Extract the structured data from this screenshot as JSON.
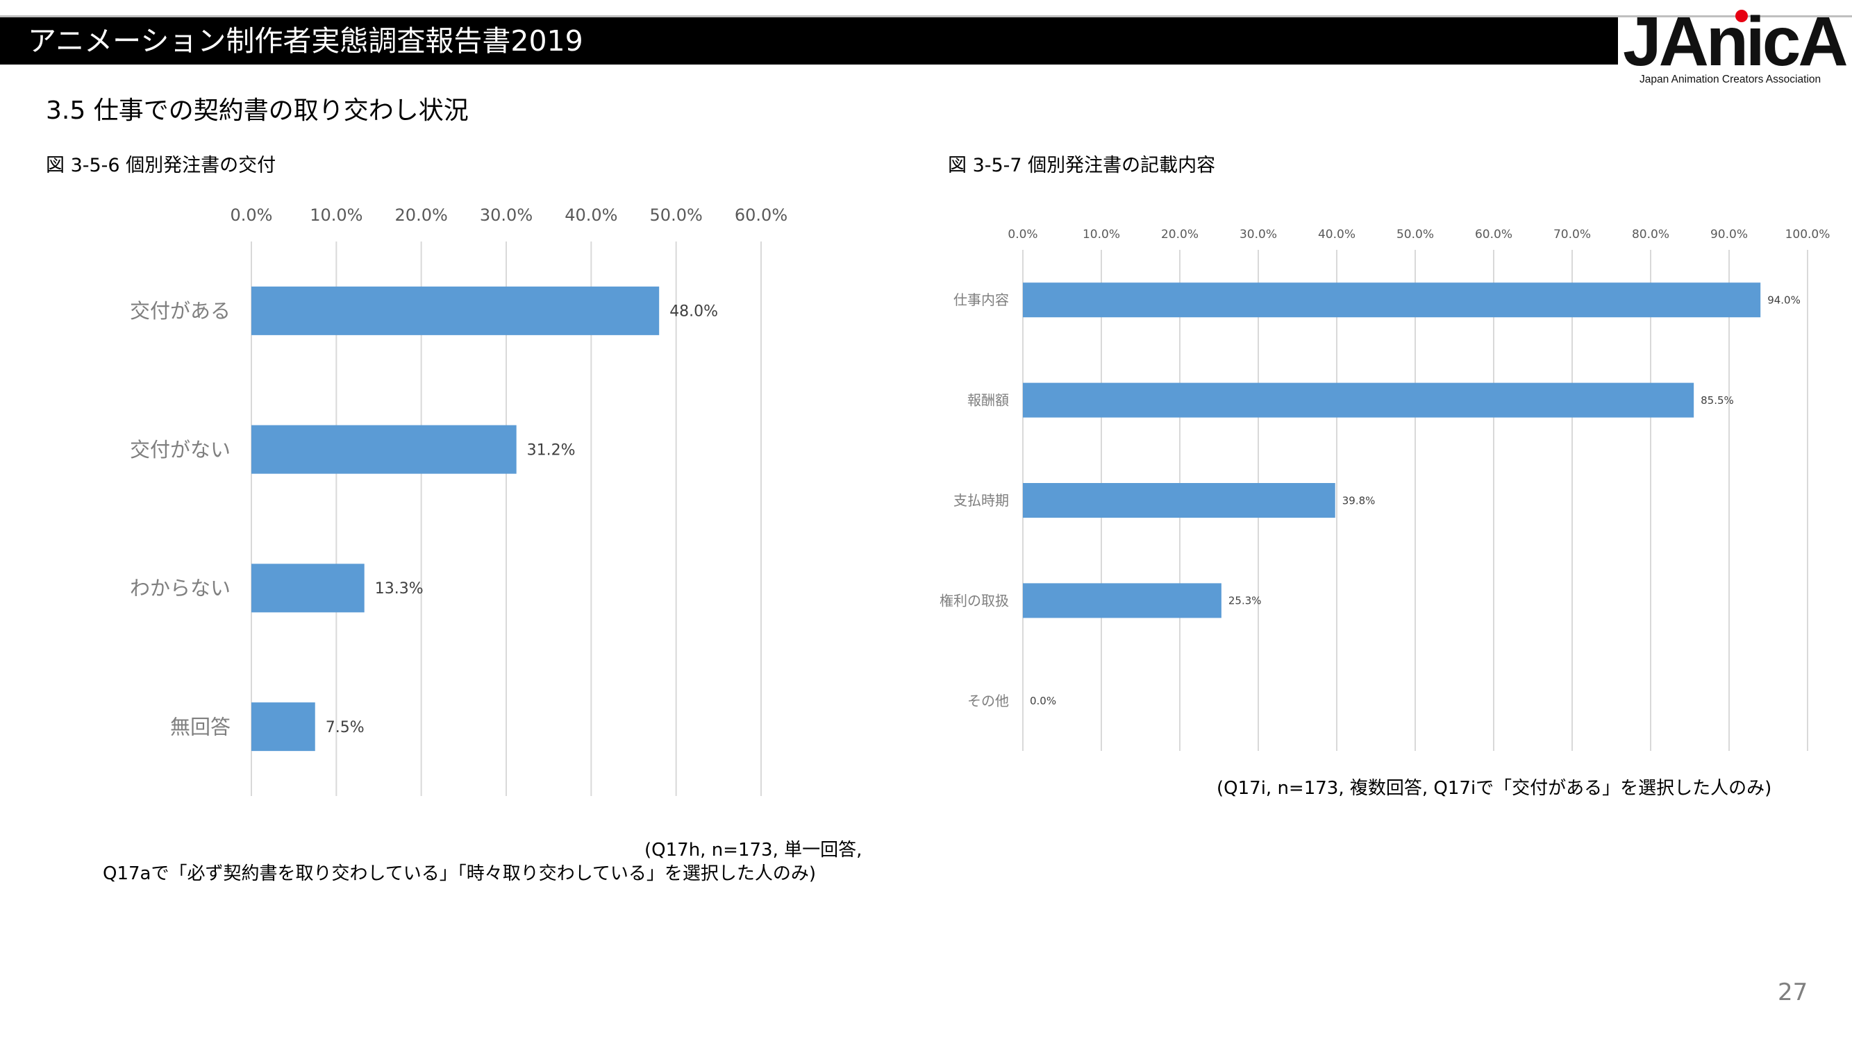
{
  "header": {
    "title": "アニメーション制作者実態調査報告書2019",
    "logo_text": "JAnicA",
    "logo_subtitle": "Japan Animation Creators Association"
  },
  "section_title": "3.5  仕事での契約書の取り交わし状況",
  "figures": {
    "fig1": {
      "title": "図 3-5-6  個別発注書の交付",
      "note_line1": "(Q17h, n=173, 単一回答,",
      "note_line2": "Q17aで「必ず契約書を取り交わしている」「時々取り交わしている」を選択した人のみ)"
    },
    "fig2": {
      "title": "図 3-5-7  個別発注書の記載内容",
      "note": "(Q17i, n=173, 複数回答, Q17iで「交付がある」を選択した人のみ)"
    }
  },
  "chart_data": [
    {
      "type": "bar",
      "orientation": "horizontal",
      "categories": [
        "交付がある",
        "交付がない",
        "わからない",
        "無回答"
      ],
      "values": [
        48.0,
        31.2,
        13.3,
        7.5
      ],
      "value_labels": [
        "48.0%",
        "31.2%",
        "13.3%",
        "7.5%"
      ],
      "xlim": [
        0,
        60
      ],
      "ticks": [
        "0.0%",
        "10.0%",
        "20.0%",
        "30.0%",
        "40.0%",
        "50.0%",
        "60.0%"
      ],
      "grid": true,
      "axis_position": "top",
      "bar_color": "#5b9bd5"
    },
    {
      "type": "bar",
      "orientation": "horizontal",
      "categories": [
        "仕事内容",
        "報酬額",
        "支払時期",
        "権利の取扱",
        "その他"
      ],
      "values": [
        94.0,
        85.5,
        39.8,
        25.3,
        0.0
      ],
      "value_labels": [
        "94.0%",
        "85.5%",
        "39.8%",
        "25.3%",
        "0.0%"
      ],
      "xlim": [
        0,
        100
      ],
      "ticks": [
        "0.0%",
        "10.0%",
        "20.0%",
        "30.0%",
        "40.0%",
        "50.0%",
        "60.0%",
        "70.0%",
        "80.0%",
        "90.0%",
        "100.0%"
      ],
      "grid": true,
      "axis_position": "top",
      "bar_color": "#5b9bd5"
    }
  ],
  "page_number": "27"
}
